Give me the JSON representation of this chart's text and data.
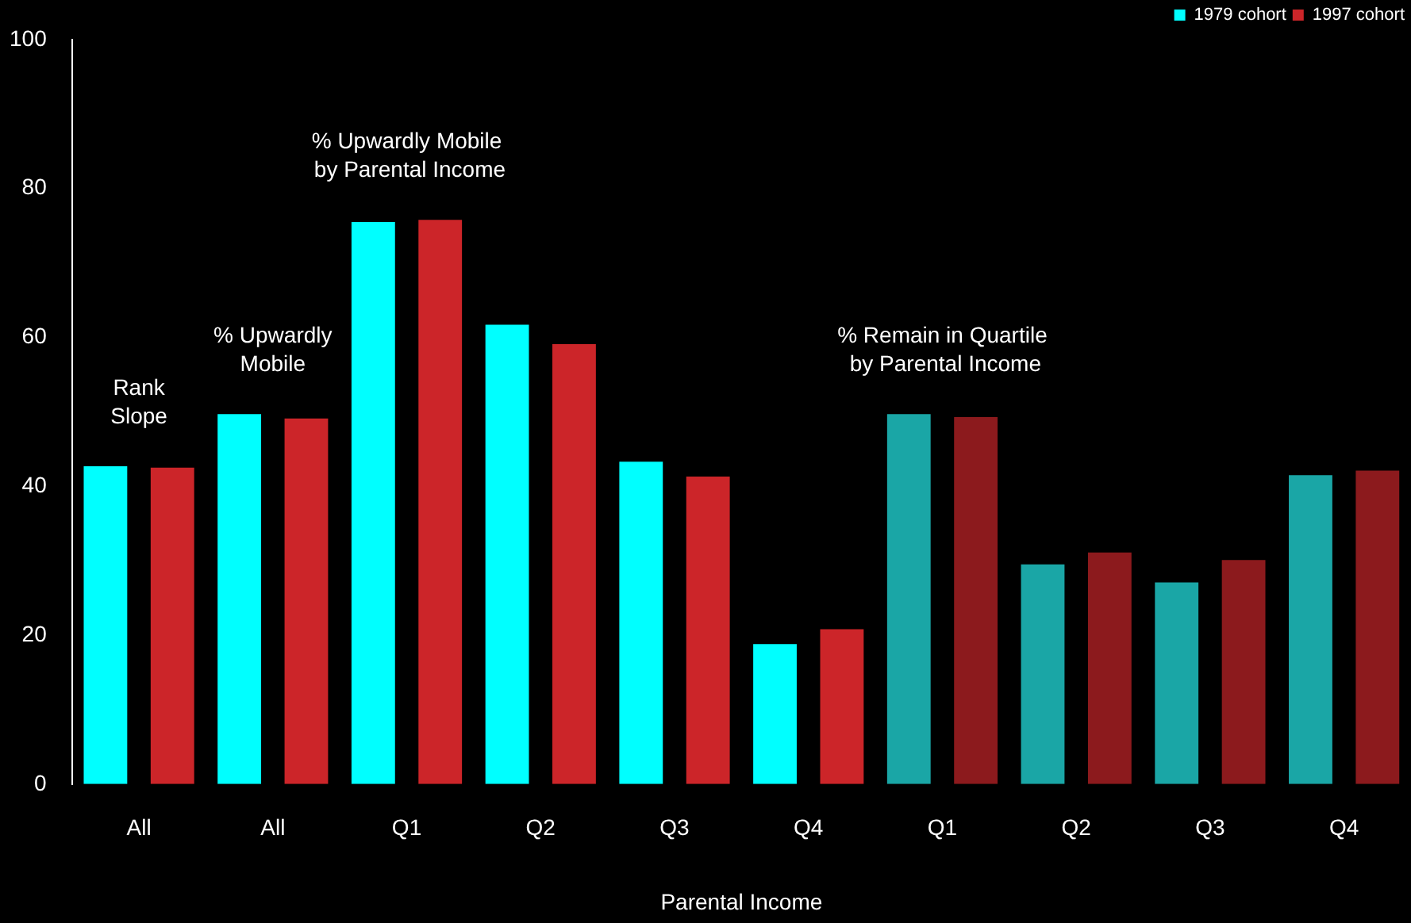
{
  "chart_data": {
    "type": "bar",
    "xlabel": "Parental Income",
    "categories": [
      "All",
      "All",
      "Q1",
      "Q2",
      "Q3",
      "Q4",
      "Q1",
      "Q2",
      "Q3",
      "Q4"
    ],
    "series": [
      {
        "name": "1979 cohort",
        "color": "#00ffff",
        "colors": [
          "#00ffff",
          "#00ffff",
          "#00ffff",
          "#00ffff",
          "#00ffff",
          "#00ffff",
          "#1aa6a6",
          "#1aa6a6",
          "#1aa6a6",
          "#1aa6a6"
        ],
        "values": [
          42.7,
          49.7,
          75.5,
          61.7,
          43.3,
          18.8,
          49.7,
          29.5,
          27.1,
          41.5
        ]
      },
      {
        "name": "1997 cohort",
        "color": "#cc2529",
        "colors": [
          "#cc2529",
          "#cc2529",
          "#cc2529",
          "#cc2529",
          "#cc2529",
          "#cc2529",
          "#8c1a1d",
          "#8c1a1d",
          "#8c1a1d",
          "#8c1a1d"
        ],
        "values": [
          42.5,
          49.1,
          75.8,
          59.1,
          41.3,
          20.8,
          49.3,
          31.1,
          30.1,
          42.1
        ]
      }
    ],
    "annotations": [
      "Rank\nSlope",
      "% Upwardly\nMobile",
      "% Upwardly Mobile\n by Parental Income",
      "% Remain in Quartile\n by Parental Income"
    ],
    "ylim": [
      0,
      100
    ],
    "yticks": [
      0,
      20,
      40,
      60,
      80,
      100
    ],
    "grid": false,
    "legend": "top right"
  }
}
